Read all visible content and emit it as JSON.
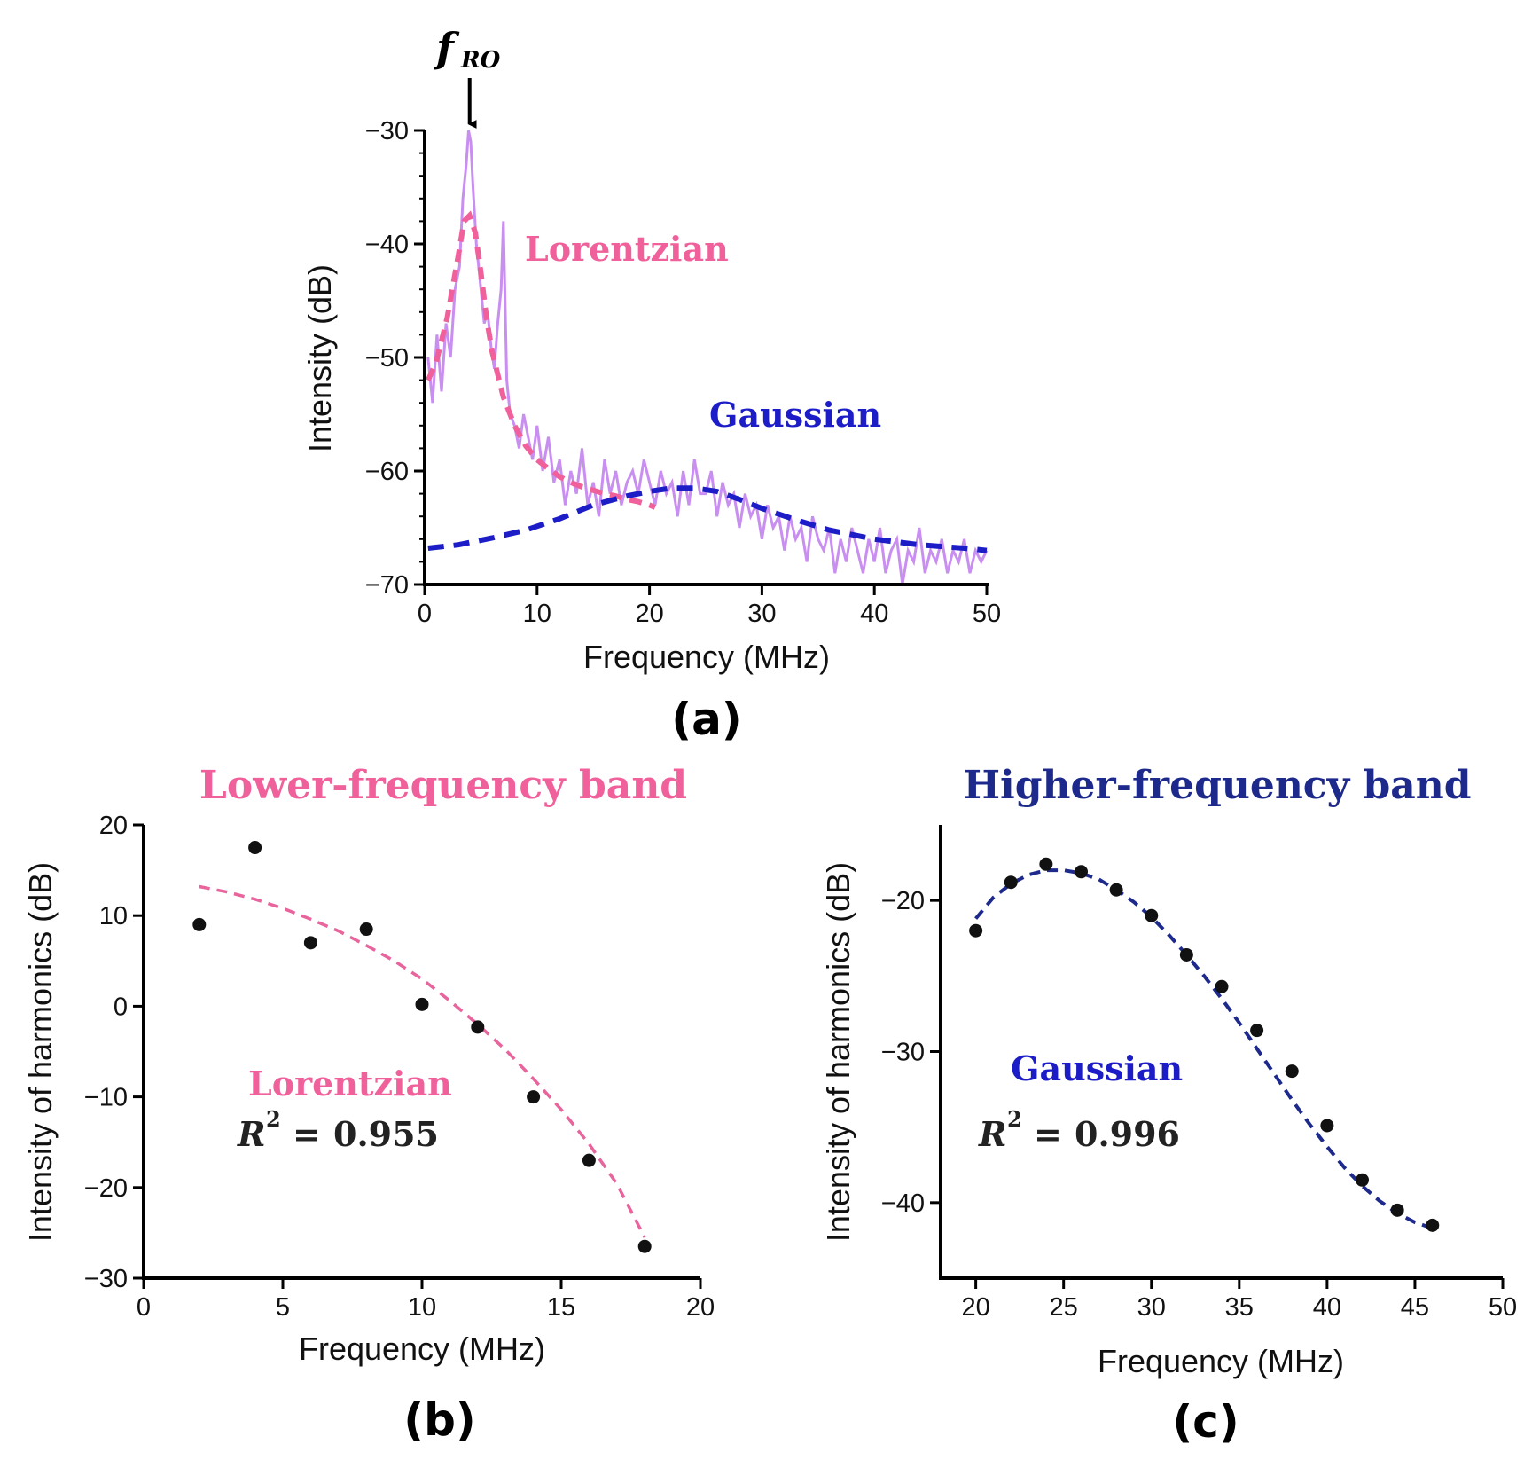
{
  "chart_data": [
    {
      "panel": "(a)",
      "type": "line",
      "xlabel": "Frequency (MHz)",
      "ylabel": "Intensity (dB)",
      "xlim": [
        0,
        50
      ],
      "ylim": [
        -70,
        -30
      ],
      "xticks": [
        0,
        10,
        20,
        30,
        40,
        50
      ],
      "yticks": [
        -30,
        -40,
        -50,
        -60,
        -70
      ],
      "annotations": {
        "peak_marker": "RO",
        "peak_frequency": 4,
        "lorentzian": "Lorentzian",
        "gaussian": "Gaussian"
      },
      "series": [
        {
          "name": "Lorentzian",
          "color": "#f0609a",
          "style": "dashed",
          "x": [
            0.3,
            1,
            2,
            3,
            3.5,
            4,
            4.5,
            5,
            5.5,
            6,
            7,
            8,
            9,
            10,
            11,
            12,
            13,
            14,
            15,
            16,
            17,
            18,
            19,
            20,
            20.5
          ],
          "y": [
            -52,
            -50.5,
            -46.5,
            -41,
            -38,
            -37.5,
            -39,
            -42.5,
            -46.5,
            -49.5,
            -53.5,
            -56,
            -57.8,
            -59,
            -59.8,
            -60.5,
            -61,
            -61.4,
            -61.7,
            -62,
            -62.2,
            -62.5,
            -62.7,
            -63,
            -63.2
          ]
        },
        {
          "name": "Gaussian",
          "color": "#1d1dc8",
          "style": "dashed",
          "x": [
            0.3,
            3,
            6,
            9,
            12,
            15,
            18,
            20,
            22,
            24,
            26,
            28,
            30,
            33,
            36,
            40,
            44,
            48,
            50
          ],
          "y": [
            -66.8,
            -66.5,
            -65.9,
            -65.2,
            -64.2,
            -63.0,
            -62.2,
            -61.8,
            -61.5,
            -61.5,
            -61.8,
            -62.5,
            -63.3,
            -64.3,
            -65.2,
            -66.0,
            -66.5,
            -66.8,
            -67.0
          ]
        },
        {
          "name": "spectrum",
          "color": "#c98ff0",
          "style": "solid",
          "x": [
            0.3,
            0.7,
            1.1,
            1.5,
            1.9,
            2.3,
            2.7,
            3.1,
            3.4,
            3.7,
            3.9,
            4.1,
            4.3,
            4.6,
            5.0,
            5.3,
            5.6,
            5.9,
            6.2,
            6.5,
            6.8,
            7.0,
            7.3,
            7.6,
            8.0,
            8.4,
            8.8,
            9.2,
            9.6,
            10.0,
            10.5,
            11.0,
            11.5,
            12.0,
            12.5,
            13.0,
            13.5,
            14.0,
            14.5,
            15.0,
            15.5,
            16.0,
            16.5,
            17.0,
            17.5,
            18.0,
            18.5,
            19.0,
            19.5,
            20.0,
            20.5,
            21.0,
            21.5,
            22.0,
            22.5,
            23.0,
            23.5,
            24.0,
            24.5,
            25.0,
            25.5,
            26.0,
            26.5,
            27.0,
            27.5,
            28.0,
            28.5,
            29.0,
            29.5,
            30.0,
            30.5,
            31.0,
            31.5,
            32.0,
            32.5,
            33.0,
            33.5,
            34.0,
            34.5,
            35.0,
            35.5,
            36.0,
            36.5,
            37.0,
            37.5,
            38.0,
            38.5,
            39.0,
            39.5,
            40.0,
            40.5,
            41.0,
            41.5,
            42.0,
            42.5,
            43.0,
            43.5,
            44.0,
            44.5,
            45.0,
            45.5,
            46.0,
            46.5,
            47.0,
            47.5,
            48.0,
            48.5,
            49.0,
            49.5,
            50.0
          ],
          "y": [
            -50,
            -54,
            -48,
            -53,
            -47,
            -50,
            -44,
            -42,
            -36,
            -33,
            -30,
            -31,
            -35,
            -40,
            -44,
            -47,
            -46,
            -49,
            -51,
            -47,
            -44,
            -38,
            -52,
            -55,
            -56,
            -58,
            -55,
            -57,
            -59,
            -56,
            -60,
            -57,
            -61,
            -59,
            -63,
            -60,
            -62,
            -58,
            -63,
            -61,
            -64,
            -59,
            -62,
            -60,
            -63,
            -61,
            -60,
            -62,
            -59,
            -61,
            -63,
            -60,
            -62,
            -61,
            -64,
            -60,
            -63,
            -59,
            -62,
            -62,
            -60,
            -64,
            -61,
            -63,
            -62,
            -65,
            -62,
            -64,
            -63,
            -66,
            -63,
            -65,
            -64,
            -67,
            -64,
            -66,
            -65,
            -68,
            -64,
            -66,
            -67,
            -65,
            -69,
            -66,
            -68,
            -65,
            -67,
            -69,
            -66,
            -68,
            -65,
            -69,
            -67,
            -66,
            -70,
            -67,
            -68,
            -65,
            -69,
            -67,
            -68,
            -66,
            -69,
            -67,
            -68,
            -66,
            -69,
            -67,
            -68,
            -67
          ]
        }
      ]
    },
    {
      "panel": "(b)",
      "type": "scatter",
      "title": "Lower-frequency band",
      "xlabel": "Frequency (MHz)",
      "ylabel": "Intensity of harmonics (dB)",
      "xlim": [
        0,
        20
      ],
      "ylim": [
        -30,
        20
      ],
      "xticks": [
        0,
        5,
        10,
        15,
        20
      ],
      "yticks": [
        20,
        10,
        0,
        -10,
        -20,
        -30
      ],
      "fit_label": "Lorentzian",
      "r2_value": "0.955",
      "points": {
        "x": [
          2,
          4,
          6,
          8,
          10,
          12,
          14,
          16,
          18
        ],
        "y": [
          9,
          17.5,
          7,
          8.5,
          0.2,
          -2.3,
          -10,
          -17,
          -26.5
        ]
      },
      "fit": {
        "color": "#e8649c",
        "x": [
          2,
          3,
          4,
          5,
          6,
          7,
          8,
          9,
          10,
          11,
          12,
          13,
          14,
          15,
          16,
          17,
          18
        ],
        "y": [
          13.2,
          12.6,
          11.8,
          10.8,
          9.6,
          8.3,
          6.7,
          5.0,
          3.0,
          0.6,
          -2.0,
          -4.8,
          -8.0,
          -11.4,
          -15.2,
          -19.6,
          -25.5
        ]
      }
    },
    {
      "panel": "(c)",
      "type": "scatter",
      "title": "Higher-frequency band",
      "xlabel": "Frequency (MHz)",
      "ylabel": "Intensity of harmonics (dB)",
      "xlim": [
        18,
        50
      ],
      "ylim": [
        -45,
        -15
      ],
      "xticks": [
        20,
        25,
        30,
        35,
        40,
        45,
        50
      ],
      "yticks": [
        -20,
        -30,
        -40
      ],
      "fit_label": "Gaussian",
      "r2_value": "0.996",
      "points": {
        "x": [
          20,
          22,
          24,
          26,
          28,
          30,
          32,
          34,
          36,
          38,
          40,
          42,
          44,
          46
        ],
        "y": [
          -22,
          -18.8,
          -17.6,
          -18.1,
          -19.3,
          -21,
          -23.6,
          -25.7,
          -28.6,
          -31.3,
          -34.9,
          -38.5,
          -40.5,
          -41.5
        ]
      },
      "fit": {
        "color": "#1d2a8c",
        "x": [
          20,
          21,
          22,
          23,
          24,
          25,
          26,
          27,
          28,
          29,
          30,
          31,
          32,
          33,
          34,
          35,
          36,
          37,
          38,
          39,
          40,
          41,
          42,
          43,
          44,
          45,
          46
        ],
        "y": [
          -21.2,
          -19.8,
          -18.9,
          -18.3,
          -18.0,
          -18.0,
          -18.2,
          -18.6,
          -19.3,
          -20.1,
          -21.1,
          -22.3,
          -23.6,
          -25.0,
          -26.5,
          -28.1,
          -29.8,
          -31.5,
          -33.2,
          -34.8,
          -36.3,
          -37.7,
          -38.9,
          -39.9,
          -40.7,
          -41.3,
          -41.7
        ]
      }
    }
  ],
  "labels": {
    "panel_a": "(a)",
    "panel_b": "(b)",
    "panel_c": "(c)",
    "f_symbol": "f",
    "r2_prefix": "R",
    "r2_exponent": "2",
    "equals": "="
  }
}
